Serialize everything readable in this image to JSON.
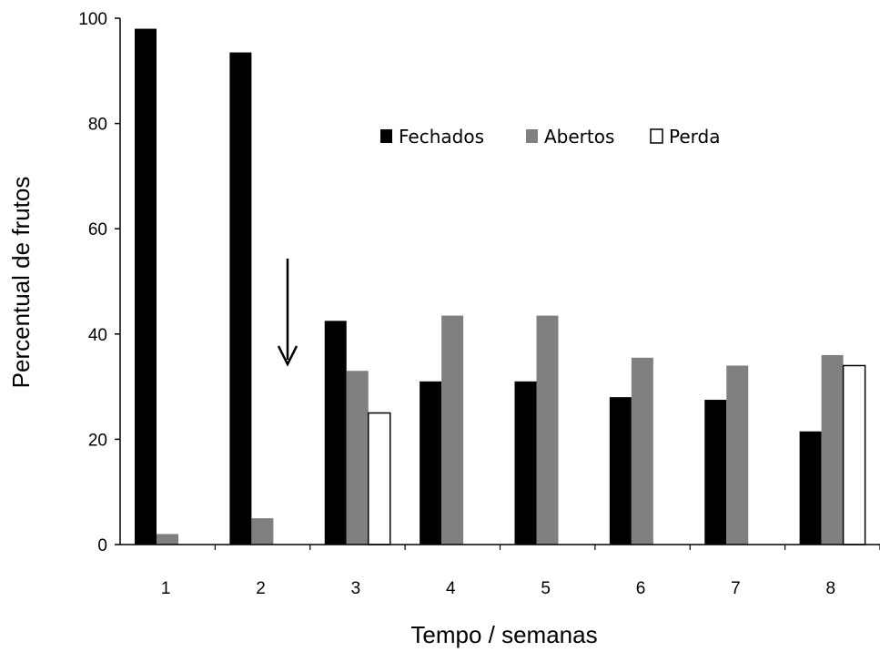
{
  "chart_data": {
    "type": "bar",
    "xlabel": "Tempo / semanas",
    "ylabel": "Percentual de frutos",
    "ylim": [
      0,
      100
    ],
    "yticks": [
      0,
      20,
      40,
      60,
      80,
      100
    ],
    "categories": [
      "1",
      "2",
      "3",
      "4",
      "5",
      "6",
      "7",
      "8"
    ],
    "series": [
      {
        "name": "Fechados",
        "color": "#000000",
        "values": [
          98,
          93.5,
          42.5,
          31,
          31,
          28,
          27.5,
          21.5
        ]
      },
      {
        "name": "Abertos",
        "color": "#808080",
        "values": [
          2,
          5,
          33,
          43.5,
          43.5,
          35.5,
          34,
          36
        ]
      },
      {
        "name": "Perda",
        "color": "#ffffff",
        "values": [
          null,
          null,
          25,
          null,
          null,
          null,
          null,
          34
        ]
      }
    ],
    "legend_position": "top-right",
    "grid": false,
    "annotation": {
      "type": "arrow",
      "direction": "down",
      "between_categories": [
        "2",
        "3"
      ]
    }
  }
}
